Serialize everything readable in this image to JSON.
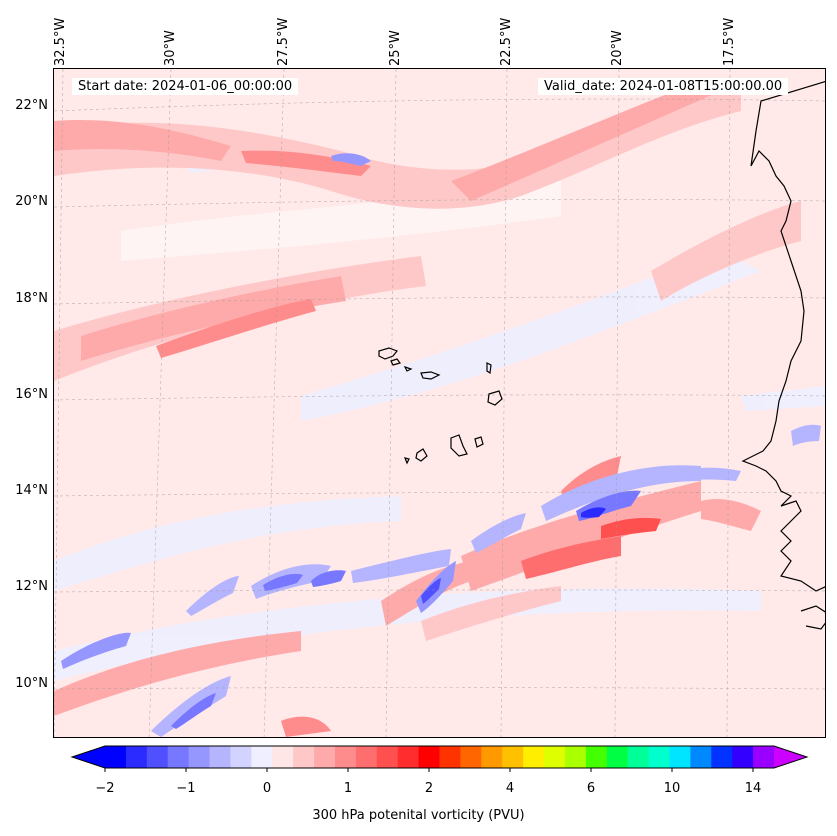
{
  "map": {
    "start_date": "Start date: 2024-01-06_00:00:00",
    "valid_date": "Valid_date: 2024-01-08T15:00:00.00",
    "lon_labels": [
      "32.5°W",
      "30°W",
      "27.5°W",
      "25°W",
      "22.5°W",
      "20°W",
      "17.5°W"
    ],
    "lat_labels": [
      "22°N",
      "20°N",
      "18°N",
      "16°N",
      "14°N",
      "12°N",
      "10°N"
    ],
    "background_color": "#ffe9e9",
    "coast_color": "#000000"
  },
  "colorbar": {
    "label": "300 hPa potenital vorticity (PVU)",
    "tick_labels": [
      "−2",
      "−1",
      "0",
      "1",
      "2",
      "4",
      "6",
      "10",
      "14"
    ],
    "colors": [
      "#0000ff",
      "#2b2bff",
      "#5050ff",
      "#7777ff",
      "#9696ff",
      "#b4b4ff",
      "#d3d3ff",
      "#efefff",
      "#ffe6e6",
      "#ffc8c8",
      "#ffaaaa",
      "#ff8c8c",
      "#ff6e6e",
      "#ff5050",
      "#ff2d2d",
      "#ff0000",
      "#ff3300",
      "#ff6600",
      "#ff9900",
      "#ffc000",
      "#ffee00",
      "#ddff00",
      "#aaff00",
      "#44ff00",
      "#00ff44",
      "#00ff99",
      "#00ffcc",
      "#00e5ff",
      "#0088ff",
      "#0033ff",
      "#3300ff",
      "#9900ff"
    ],
    "under_color": "#0000ff",
    "over_color": "#cc00ff"
  }
}
